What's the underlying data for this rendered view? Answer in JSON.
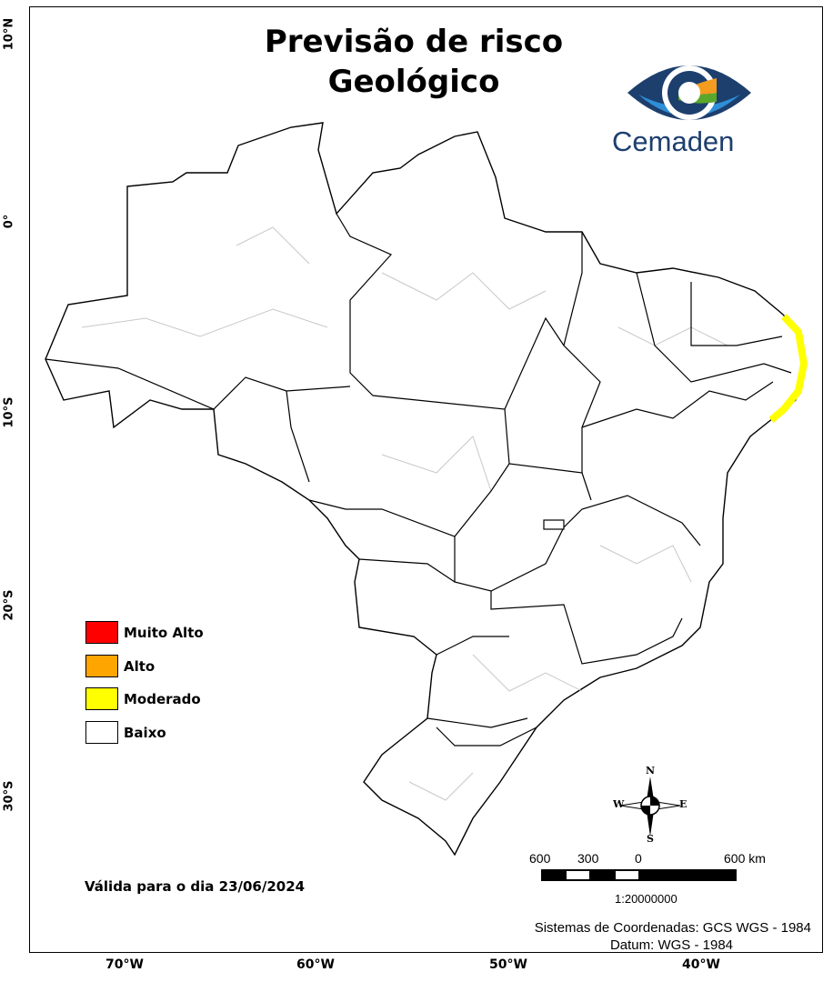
{
  "title": {
    "line1": "Previsão de risco",
    "line2": "Geológico"
  },
  "logo": {
    "text": "Cemaden",
    "colors": [
      "#1d3f6e",
      "#2e8fd8",
      "#f39c1f",
      "#5aa82b"
    ]
  },
  "axes": {
    "latitudes": [
      "10°N",
      "0°",
      "10°S",
      "20°S",
      "30°S"
    ],
    "longitudes": [
      "70°W",
      "60°W",
      "50°W",
      "40°W"
    ]
  },
  "legend": [
    {
      "label": "Muito Alto",
      "color": "#ff0000"
    },
    {
      "label": "Alto",
      "color": "#ffa500"
    },
    {
      "label": "Moderado",
      "color": "#ffff00"
    },
    {
      "label": "Baixo",
      "color": "#ffffff"
    }
  ],
  "risk_areas": [
    {
      "region": "Eastern northeast coast",
      "level": "Moderado"
    }
  ],
  "validity": "Válida para o dia 23/06/2024",
  "north_arrow": {
    "n": "N",
    "s": "S",
    "e": "E",
    "w": "W"
  },
  "scale_bar": {
    "labels": [
      "600",
      "300",
      "0",
      "600 km"
    ],
    "ratio": "1:20000000"
  },
  "credits": {
    "crs": "Sistemas de Coordenadas: GCS WGS - 1984",
    "datum": "Datum: WGS - 1984"
  }
}
